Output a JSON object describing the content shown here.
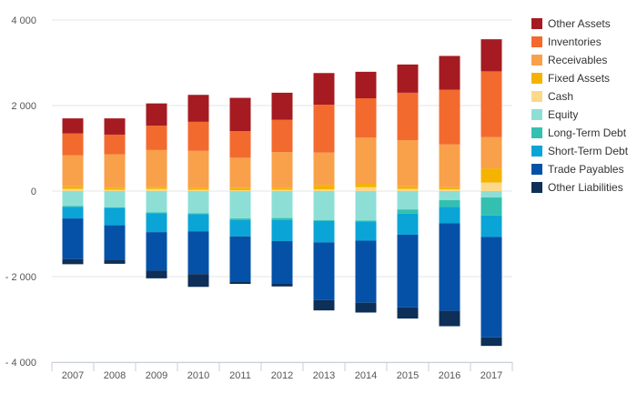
{
  "chart_data": {
    "type": "bar",
    "stacked": true,
    "categories": [
      "2007",
      "2008",
      "2009",
      "2010",
      "2011",
      "2012",
      "2013",
      "2014",
      "2015",
      "2016",
      "2017"
    ],
    "ylim": [
      -4000,
      4000
    ],
    "yticks": [
      -4000,
      -2000,
      0,
      2000,
      4000
    ],
    "ytick_labels": [
      "- 4 000",
      "- 2 000",
      "0",
      "2 000",
      "4 000"
    ],
    "grid": true,
    "legend_position": "right",
    "series": [
      {
        "name": "Other Assets",
        "color": "#a51b21",
        "values": [
          350,
          380,
          520,
          630,
          780,
          630,
          740,
          620,
          660,
          790,
          750
        ]
      },
      {
        "name": "Inventories",
        "color": "#f26a2e",
        "values": [
          510,
          460,
          570,
          680,
          620,
          760,
          1120,
          920,
          1110,
          1280,
          1540
        ]
      },
      {
        "name": "Receivables",
        "color": "#f9a04b",
        "values": [
          730,
          780,
          860,
          860,
          700,
          830,
          760,
          1080,
          1080,
          1000,
          730
        ]
      },
      {
        "name": "Fixed Assets",
        "color": "#f5b300",
        "values": [
          60,
          50,
          50,
          50,
          60,
          50,
          100,
          80,
          60,
          50,
          330
        ]
      },
      {
        "name": "Cash",
        "color": "#fcd98a",
        "values": [
          50,
          30,
          50,
          30,
          20,
          30,
          40,
          90,
          50,
          40,
          200
        ]
      },
      {
        "name": "Equity",
        "color": "#8ddfd6",
        "values": [
          -350,
          -380,
          -500,
          -520,
          -640,
          -630,
          -680,
          -690,
          -430,
          -210,
          -150
        ]
      },
      {
        "name": "Long-Term Debt",
        "color": "#33c0b0",
        "values": [
          -20,
          -10,
          -20,
          -20,
          -40,
          -50,
          -20,
          -20,
          -100,
          -160,
          -420
        ]
      },
      {
        "name": "Short-Term Debt",
        "color": "#0aa5d6",
        "values": [
          -270,
          -410,
          -440,
          -400,
          -380,
          -490,
          -500,
          -450,
          -490,
          -380,
          -500
        ]
      },
      {
        "name": "Trade Payables",
        "color": "#0451a7",
        "values": [
          -950,
          -800,
          -900,
          -1000,
          -1050,
          -1000,
          -1350,
          -1450,
          -1700,
          -2050,
          -2350
        ]
      },
      {
        "name": "Other Liabilities",
        "color": "#0d2f58",
        "values": [
          -120,
          -100,
          -180,
          -300,
          -60,
          -60,
          -240,
          -230,
          -260,
          -360,
          -200
        ]
      }
    ]
  }
}
